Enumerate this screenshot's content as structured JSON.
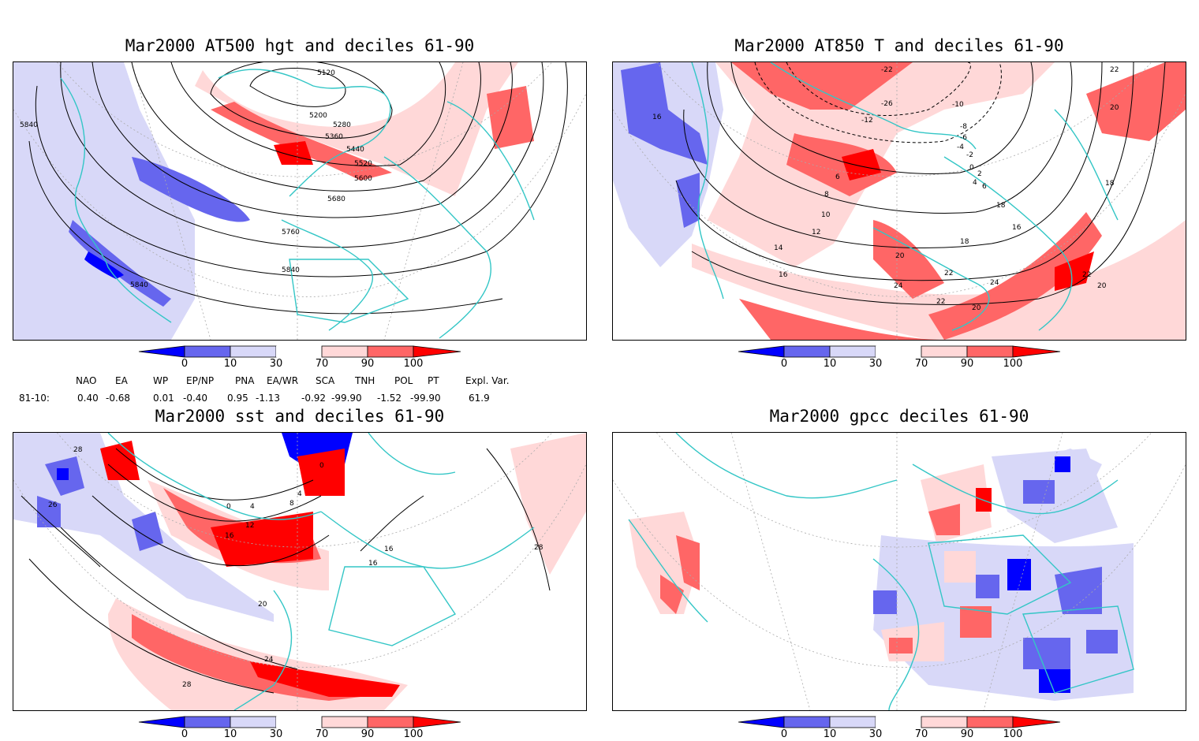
{
  "panels": [
    {
      "id": "p1",
      "title": "Mar2000 AT500 hgt and deciles 61-90",
      "contour_labels": [
        "5120",
        "5200",
        "5280",
        "5360",
        "5440",
        "5520",
        "5600",
        "5680",
        "5760",
        "5840",
        "5840",
        "5840"
      ]
    },
    {
      "id": "p2",
      "title": "Mar2000 AT850 T and deciles 61-90",
      "contour_labels": [
        "-22",
        "-26",
        "-12",
        "-10",
        "-8",
        "-6",
        "-4",
        "-2",
        "0",
        "2",
        "4",
        "6",
        "6",
        "8",
        "10",
        "12",
        "14",
        "16",
        "18",
        "20",
        "22",
        "24",
        "16",
        "18",
        "20",
        "22",
        "24",
        "22",
        "20",
        "18",
        "16",
        "22",
        "20"
      ]
    },
    {
      "id": "p3",
      "title": "Mar2000 sst and deciles 61-90",
      "contour_labels": [
        "28",
        "26",
        "0",
        "4",
        "8",
        "12",
        "16",
        "16",
        "20",
        "24",
        "28",
        "28",
        "16",
        "4",
        "0"
      ]
    },
    {
      "id": "p4",
      "title": "Mar2000 gpcc deciles 61-90",
      "contour_labels": []
    }
  ],
  "colorbar": {
    "ticks": [
      "0",
      "10",
      "30",
      "70",
      "90",
      "100"
    ],
    "colors": {
      "lt0": "#0000ff",
      "c0_10": "#6666ee",
      "c10_30": "#d8d8f8",
      "c30_70": "#ffffff",
      "c70_90": "#ffd8d8",
      "c90_100": "#ff6666",
      "gt100": "#ff0000"
    }
  },
  "indices": {
    "row_label": "81-10:",
    "names": [
      "NAO",
      "EA",
      "WP",
      "EP/NP",
      "PNA",
      "EA/WR",
      "SCA",
      "TNH",
      "POL",
      "PT",
      "Expl. Var."
    ],
    "values": [
      "0.40",
      "-0.68",
      "0.01",
      "-0.40",
      "0.95",
      "-1.13",
      "-0.92",
      "-99.90",
      "-1.52",
      "-99.90",
      "61.9"
    ]
  },
  "colors": {
    "coast": "#33c6c6",
    "grid": "#aaaaaa"
  }
}
